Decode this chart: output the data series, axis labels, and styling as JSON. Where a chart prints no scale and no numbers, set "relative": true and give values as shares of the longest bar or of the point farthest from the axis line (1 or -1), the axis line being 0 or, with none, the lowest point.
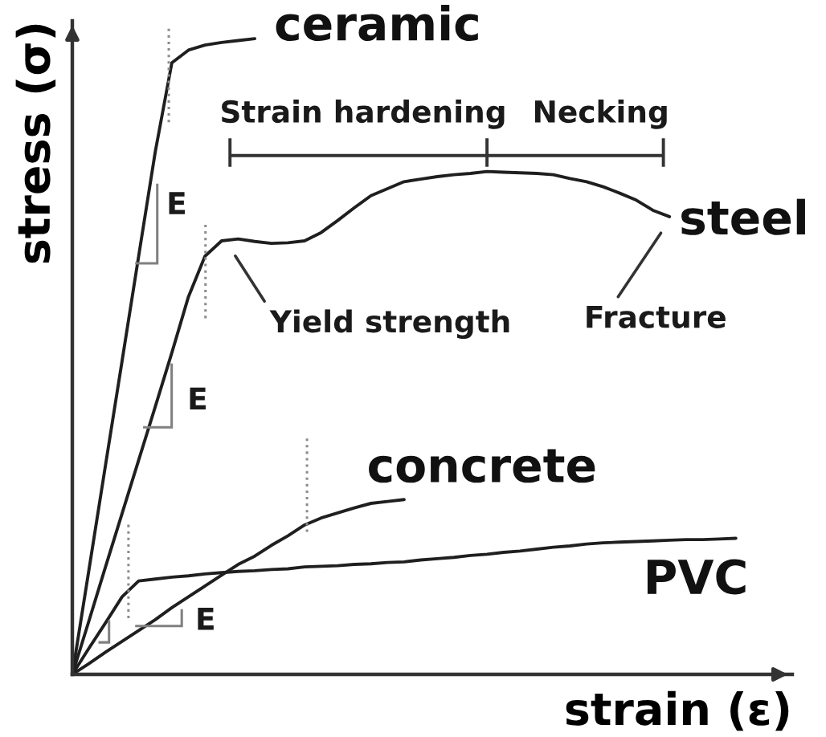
{
  "chart_data": {
    "type": "line",
    "relative": true,
    "line_style": "solid",
    "xlabel": "strain (ε)",
    "ylabel": "stress (σ)",
    "categories": [
      null,
      null,
      null,
      null,
      null,
      null,
      null,
      null,
      null,
      null,
      null,
      null,
      null,
      null,
      null,
      null,
      null,
      null,
      null,
      null,
      null,
      null,
      null,
      null,
      null,
      null,
      null,
      null,
      null,
      null,
      null,
      null,
      null,
      null,
      null,
      null,
      null,
      null,
      null,
      null,
      null
    ],
    "series": [
      {
        "name": "ceramic",
        "color": "#1f1f1f",
        "values": [
          0,
          0.164,
          0.329,
          0.493,
          0.658,
          0.822,
          0.962,
          0.982,
          0.99,
          0.994,
          0.997,
          1.0,
          null,
          null,
          null,
          null,
          null,
          null,
          null,
          null,
          null,
          null,
          null,
          null,
          null,
          null,
          null,
          null,
          null,
          null,
          null,
          null,
          null,
          null,
          null,
          null,
          null,
          null,
          null,
          null,
          null
        ]
      },
      {
        "name": "steel",
        "color": "#1f1f1f",
        "values": [
          0,
          0.084,
          0.169,
          0.253,
          0.337,
          0.421,
          0.506,
          0.594,
          0.658,
          0.682,
          0.685,
          0.681,
          0.678,
          0.679,
          0.682,
          0.695,
          0.714,
          0.734,
          0.753,
          0.764,
          0.775,
          0.779,
          0.783,
          0.786,
          0.788,
          0.791,
          0.79,
          0.789,
          0.788,
          0.786,
          0.78,
          0.775,
          0.767,
          0.757,
          0.746,
          0.73,
          0.72,
          null,
          null,
          null,
          null
        ]
      },
      {
        "name": "concrete",
        "color": "#1f1f1f",
        "values": [
          0,
          0.017,
          0.035,
          0.052,
          0.069,
          0.086,
          0.105,
          0.122,
          0.139,
          0.156,
          0.173,
          0.186,
          0.203,
          0.218,
          0.235,
          0.246,
          0.254,
          0.262,
          0.269,
          0.272,
          0.275,
          null,
          null,
          null,
          null,
          null,
          null,
          null,
          null,
          null,
          null,
          null,
          null,
          null,
          null,
          null,
          null,
          null,
          null,
          null,
          null
        ]
      },
      {
        "name": "PVC",
        "color": "#1f1f1f",
        "values": [
          0,
          0.041,
          0.081,
          0.122,
          0.147,
          0.15,
          0.153,
          0.155,
          0.158,
          0.16,
          0.162,
          0.163,
          0.165,
          0.166,
          0.169,
          0.17,
          0.171,
          0.173,
          0.174,
          0.176,
          0.177,
          0.18,
          0.182,
          0.184,
          0.187,
          0.189,
          0.192,
          0.194,
          0.197,
          0.2,
          0.202,
          0.205,
          0.207,
          0.208,
          0.209,
          0.21,
          0.211,
          0.212,
          0.212,
          0.213,
          0.214
        ]
      }
    ],
    "annotations": [
      "Strain hardening",
      "Necking",
      "Yield strength",
      "Fracture",
      "E",
      "E",
      "E"
    ]
  }
}
